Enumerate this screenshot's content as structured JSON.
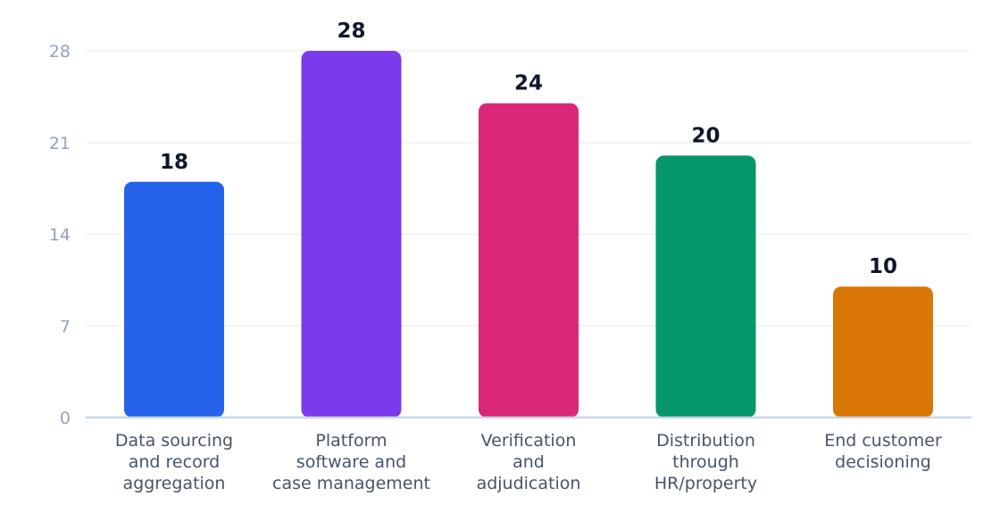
{
  "chart_data": {
    "type": "bar",
    "categories": [
      [
        "Data sourcing",
        "and record",
        "aggregation"
      ],
      [
        "Platform",
        "software and",
        "case management"
      ],
      [
        "Verification",
        "and",
        "adjudication"
      ],
      [
        "Distribution",
        "through",
        "HR/property"
      ],
      [
        "End customer",
        "decisioning"
      ]
    ],
    "values": [
      18,
      28,
      24,
      20,
      10
    ],
    "data_labels": [
      "18",
      "28",
      "24",
      "20",
      "10"
    ],
    "colors": [
      "#2563eb",
      "#7c3aed",
      "#db2777",
      "#059669",
      "#d97706"
    ],
    "ylim": [
      0,
      28
    ],
    "yticks": [
      0,
      7,
      14,
      21,
      28
    ],
    "ytick_labels": [
      "0",
      "7",
      "14",
      "21",
      "28"
    ],
    "grid": true,
    "legend": "none"
  }
}
